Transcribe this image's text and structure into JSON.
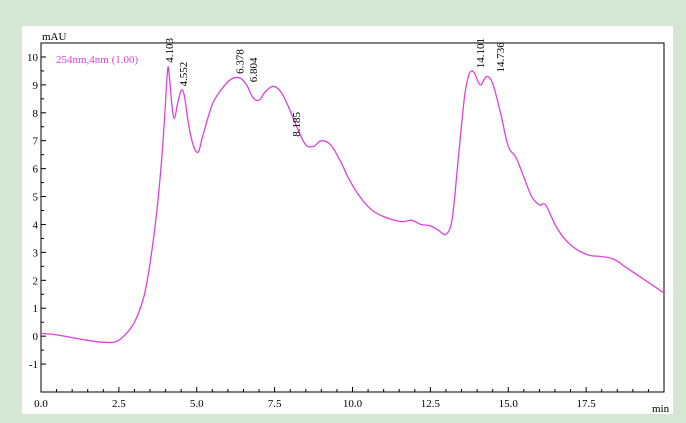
{
  "chart_data": {
    "type": "line",
    "ylabel": "mAU",
    "xlabel": "min",
    "xlim": [
      0,
      20
    ],
    "ylim": [
      -2,
      10.5
    ],
    "x_ticks": [
      0.0,
      2.5,
      5.0,
      7.5,
      10.0,
      12.5,
      15.0,
      17.5
    ],
    "x_tick_labels": [
      "0.0",
      "2.5",
      "5.0",
      "7.5",
      "10.0",
      "12.5",
      "15.0",
      "17.5"
    ],
    "y_ticks": [
      -1,
      0,
      1,
      2,
      3,
      4,
      5,
      6,
      7,
      8,
      9,
      10
    ],
    "y_tick_labels": [
      "-1",
      "0",
      "1",
      "2",
      "3",
      "4",
      "5",
      "6",
      "7",
      "8",
      "9",
      "10"
    ],
    "grid": false,
    "legend_position": "top-left",
    "series": [
      {
        "name": "254nm,4nm (1.00)",
        "color": "#e040e0",
        "points": [
          [
            0.0,
            0.1
          ],
          [
            0.5,
            0.05
          ],
          [
            1.0,
            -0.05
          ],
          [
            1.5,
            -0.15
          ],
          [
            2.0,
            -0.22
          ],
          [
            2.4,
            -0.2
          ],
          [
            2.7,
            0.05
          ],
          [
            3.0,
            0.5
          ],
          [
            3.3,
            1.4
          ],
          [
            3.5,
            2.6
          ],
          [
            3.7,
            4.3
          ],
          [
            3.85,
            6.0
          ],
          [
            3.95,
            7.5
          ],
          [
            4.03,
            9.0
          ],
          [
            4.08,
            9.65
          ],
          [
            4.13,
            9.2
          ],
          [
            4.2,
            8.3
          ],
          [
            4.28,
            7.8
          ],
          [
            4.38,
            8.3
          ],
          [
            4.48,
            8.75
          ],
          [
            4.55,
            8.8
          ],
          [
            4.62,
            8.5
          ],
          [
            4.75,
            7.5
          ],
          [
            4.9,
            6.8
          ],
          [
            5.05,
            6.6
          ],
          [
            5.2,
            7.2
          ],
          [
            5.5,
            8.3
          ],
          [
            5.8,
            8.85
          ],
          [
            6.1,
            9.2
          ],
          [
            6.378,
            9.25
          ],
          [
            6.6,
            9.0
          ],
          [
            6.8,
            8.55
          ],
          [
            7.0,
            8.45
          ],
          [
            7.2,
            8.75
          ],
          [
            7.45,
            8.95
          ],
          [
            7.7,
            8.75
          ],
          [
            7.95,
            8.2
          ],
          [
            8.25,
            7.4
          ],
          [
            8.5,
            6.85
          ],
          [
            8.75,
            6.8
          ],
          [
            9.0,
            7.0
          ],
          [
            9.3,
            6.85
          ],
          [
            9.6,
            6.3
          ],
          [
            9.9,
            5.6
          ],
          [
            10.3,
            4.9
          ],
          [
            10.7,
            4.45
          ],
          [
            11.2,
            4.2
          ],
          [
            11.6,
            4.1
          ],
          [
            11.9,
            4.15
          ],
          [
            12.2,
            4.0
          ],
          [
            12.5,
            3.95
          ],
          [
            12.75,
            3.8
          ],
          [
            13.0,
            3.65
          ],
          [
            13.2,
            4.2
          ],
          [
            13.4,
            6.4
          ],
          [
            13.6,
            8.6
          ],
          [
            13.75,
            9.4
          ],
          [
            13.9,
            9.45
          ],
          [
            14.1,
            9.0
          ],
          [
            14.3,
            9.3
          ],
          [
            14.5,
            9.05
          ],
          [
            14.75,
            8.0
          ],
          [
            15.0,
            6.8
          ],
          [
            15.25,
            6.4
          ],
          [
            15.5,
            5.7
          ],
          [
            15.75,
            5.0
          ],
          [
            16.0,
            4.7
          ],
          [
            16.2,
            4.7
          ],
          [
            16.5,
            4.0
          ],
          [
            16.8,
            3.5
          ],
          [
            17.2,
            3.1
          ],
          [
            17.6,
            2.9
          ],
          [
            18.0,
            2.85
          ],
          [
            18.4,
            2.75
          ],
          [
            18.8,
            2.45
          ],
          [
            19.2,
            2.15
          ],
          [
            19.6,
            1.85
          ],
          [
            20.0,
            1.55
          ]
        ]
      }
    ],
    "annotations": [
      {
        "label": "4.103",
        "x": 4.103,
        "y": 9.65
      },
      {
        "label": "4.552",
        "x": 4.552,
        "y": 8.8
      },
      {
        "label": "6.378",
        "x": 6.378,
        "y": 9.25
      },
      {
        "label": "6.804",
        "x": 6.804,
        "y": 8.95
      },
      {
        "label": "8.185",
        "x": 8.185,
        "y": 7.0
      },
      {
        "label": "14.101",
        "x": 14.101,
        "y": 9.45
      },
      {
        "label": "14.736",
        "x": 14.736,
        "y": 9.3
      }
    ]
  }
}
